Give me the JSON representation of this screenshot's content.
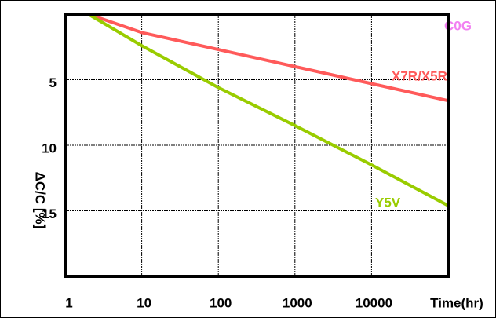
{
  "chart_data": {
    "type": "line",
    "x_label": "Time(hr)",
    "y_label": "ΔC/C [%]",
    "xlim": [
      1,
      100000
    ],
    "xticks": [
      1,
      10,
      100,
      1000,
      10000
    ],
    "x_log": true,
    "ylim": [
      0,
      20
    ],
    "yticks": [
      5,
      10,
      15
    ],
    "y_inverted": true,
    "grid": true,
    "series": [
      {
        "name": "C0G",
        "color": "#f27ff2",
        "x": [
          1,
          100000
        ],
        "values": [
          0,
          0
        ]
      },
      {
        "name": "X7R/X5R",
        "color": "#ff5a5a",
        "x": [
          2,
          10,
          100,
          1000,
          10000,
          100000
        ],
        "values": [
          0,
          1.4,
          2.7,
          4.0,
          5.3,
          6.6
        ]
      },
      {
        "name": "Y5V",
        "color": "#99cc00",
        "x": [
          2,
          10,
          100,
          1000,
          10000,
          100000
        ],
        "values": [
          0,
          2.4,
          5.6,
          8.5,
          11.5,
          14.6
        ]
      }
    ]
  }
}
